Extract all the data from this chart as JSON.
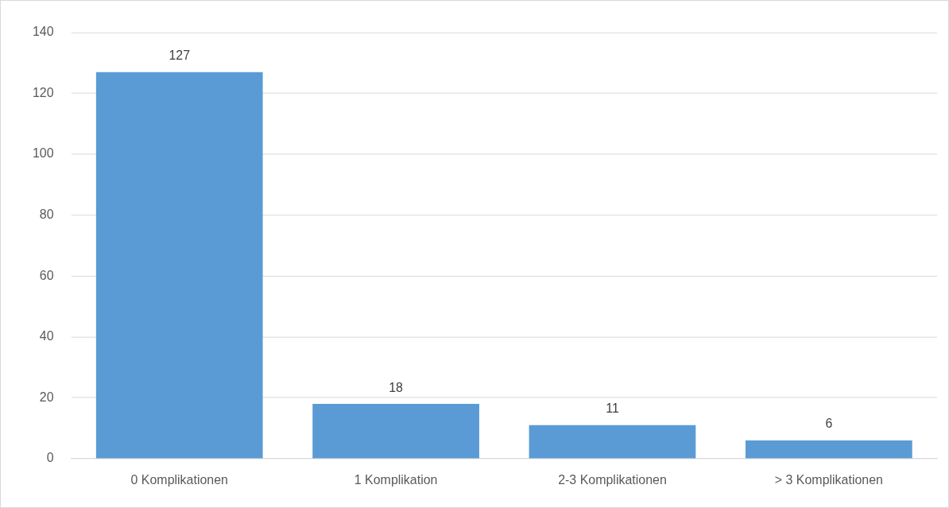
{
  "chart_data": {
    "type": "bar",
    "categories": [
      "0 Komplikationen",
      "1 Komplikation",
      "2-3 Komplikationen",
      "> 3 Komplikationen"
    ],
    "values": [
      127,
      18,
      11,
      6
    ],
    "color": "#5b9bd5",
    "ylim": [
      0,
      140
    ],
    "yticks": [
      0,
      20,
      40,
      60,
      80,
      100,
      120,
      140
    ],
    "grid": "y",
    "data_labels": true,
    "legend": false
  }
}
